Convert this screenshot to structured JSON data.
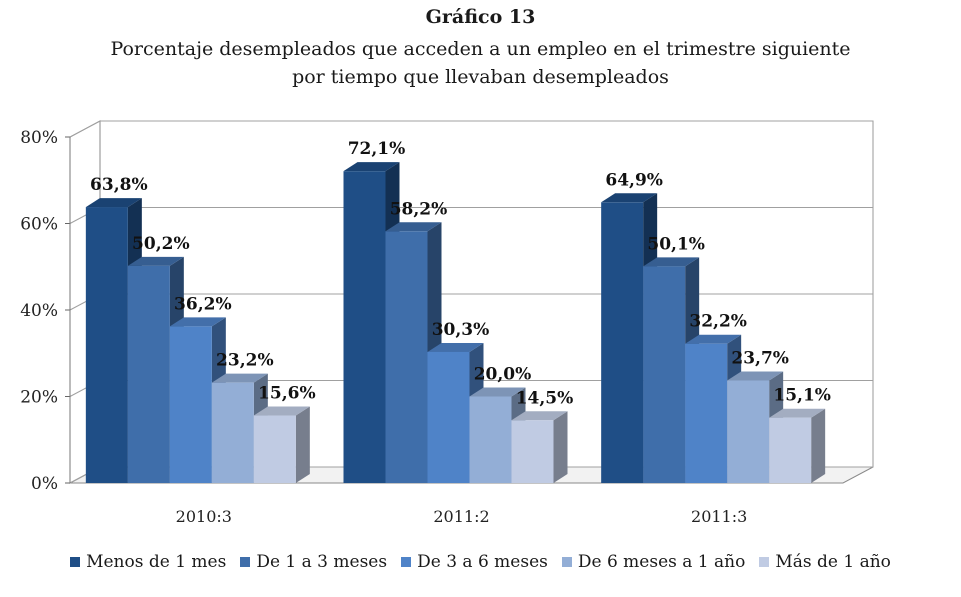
{
  "chart_data": {
    "type": "bar",
    "title": "Gráfico 13",
    "subtitle_lines": [
      "Porcentaje desempleados que acceden a un empleo en el trimestre siguiente",
      "por tiempo que llevaban desempleados"
    ],
    "categories": [
      "2010:3",
      "2011:2",
      "2011:3"
    ],
    "ylim": [
      0,
      80
    ],
    "yticks": [
      0,
      20,
      40,
      60,
      80
    ],
    "ytick_labels": [
      "0%",
      "20%",
      "40%",
      "60%",
      "80%"
    ],
    "grid": true,
    "legend_position": "bottom",
    "series": [
      {
        "name": "Menos de 1 mes",
        "color": "#1f4e86",
        "values": [
          63.8,
          72.1,
          64.9
        ],
        "labels": [
          "63,8%",
          "72,1%",
          "64,9%"
        ]
      },
      {
        "name": "De 1 a 3 meses",
        "color": "#3f6eaa",
        "values": [
          50.2,
          58.2,
          50.1
        ],
        "labels": [
          "50,2%",
          "58,2%",
          "50,1%"
        ]
      },
      {
        "name": "De 3 a 6 meses",
        "color": "#4f83c8",
        "values": [
          36.2,
          30.3,
          32.2
        ],
        "labels": [
          "36,2%",
          "30,3%",
          "32,2%"
        ]
      },
      {
        "name": "De 6 meses a 1 año",
        "color": "#93aed6",
        "values": [
          23.2,
          20.0,
          23.7
        ],
        "labels": [
          "23,2%",
          "20,0%",
          "23,7%"
        ]
      },
      {
        "name": "Más de 1 año",
        "color": "#c0cbe3",
        "values": [
          15.6,
          14.5,
          15.1
        ],
        "labels": [
          "15,6%",
          "14,5%",
          "15,1%"
        ]
      }
    ]
  }
}
